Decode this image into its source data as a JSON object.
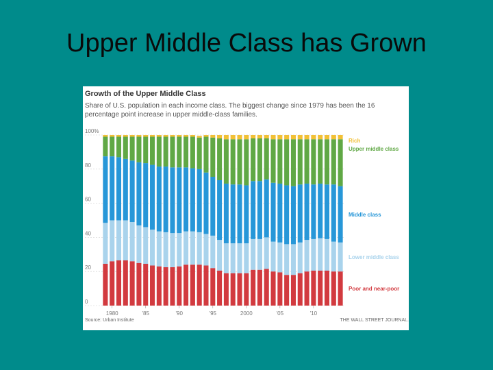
{
  "slide": {
    "title": "Upper Middle Class has Grown"
  },
  "chart_data": {
    "type": "bar",
    "stacked": true,
    "title": "Growth of the Upper Middle Class",
    "subtitle": "Share of U.S. population in each income class. The biggest change since 1979 has been the 16 percentage point increase in upper middle-class families.",
    "ylim": [
      0,
      100
    ],
    "y_ticks": [
      "100%",
      "80",
      "60",
      "40",
      "20",
      "0"
    ],
    "x_tick_labels": [
      "1980",
      "'85",
      "'90",
      "'95",
      "2000",
      "'05",
      "'10"
    ],
    "x_tick_years": [
      1980,
      1985,
      1990,
      1995,
      2000,
      2005,
      2010
    ],
    "years": [
      1979,
      1980,
      1981,
      1982,
      1983,
      1984,
      1985,
      1986,
      1987,
      1988,
      1989,
      1990,
      1991,
      1992,
      1993,
      1994,
      1995,
      1996,
      1997,
      1998,
      1999,
      2000,
      2001,
      2002,
      2003,
      2004,
      2005,
      2006,
      2007,
      2008,
      2009,
      2010,
      2011,
      2012,
      2013,
      2014
    ],
    "series": [
      {
        "name": "Poor and near-poor",
        "color": "#d23a3f",
        "values": [
          24.5,
          26,
          26.5,
          26.5,
          26,
          25,
          24.5,
          23.5,
          23,
          22.5,
          22.5,
          23,
          24,
          24,
          24,
          23.5,
          22,
          20.5,
          19,
          19,
          19,
          19,
          21,
          21,
          21.5,
          20,
          19.5,
          18,
          18,
          19,
          20,
          20.5,
          20.5,
          20.5,
          20,
          20
        ]
      },
      {
        "name": "Lower middle class",
        "color": "#a9d3ec",
        "values": [
          24,
          24,
          23.5,
          23.5,
          23,
          22,
          21.5,
          21,
          20.5,
          20.5,
          20,
          19.5,
          19.5,
          19.5,
          19,
          18.5,
          19,
          18,
          17.5,
          17.5,
          17.5,
          17.5,
          18,
          18,
          18.5,
          17.5,
          17.5,
          18,
          18,
          18,
          18.5,
          18.5,
          19,
          18.5,
          17.5,
          17
        ]
      },
      {
        "name": "Middle class",
        "color": "#2797d8",
        "values": [
          39,
          37.5,
          37,
          36,
          36,
          37,
          37.5,
          38,
          38,
          38.5,
          38.5,
          38.5,
          37.5,
          37,
          37,
          36,
          34.5,
          35,
          35,
          34.5,
          34.5,
          34,
          34,
          34,
          34,
          34.5,
          34.5,
          34.5,
          34,
          34,
          33,
          32,
          32,
          32,
          33.5,
          33
        ]
      },
      {
        "name": "Upper middle class",
        "color": "#60a845",
        "values": [
          11.5,
          11.5,
          12,
          13,
          14,
          15,
          15.5,
          16.5,
          17.5,
          17.5,
          18,
          18,
          18,
          18.5,
          18.5,
          21,
          23,
          24.5,
          26,
          26.5,
          26.5,
          27,
          25,
          25,
          24,
          25.5,
          26,
          27,
          27.5,
          26.5,
          26,
          26.5,
          26,
          26.5,
          26.5,
          27.5
        ]
      },
      {
        "name": "Rich",
        "color": "#f2c035",
        "values": [
          1,
          1,
          1,
          1,
          1,
          1,
          1,
          1,
          1,
          1,
          1,
          1,
          1,
          1,
          1,
          1,
          1.5,
          2,
          2.5,
          2.5,
          2.5,
          2.5,
          2,
          2,
          2,
          2.5,
          2.5,
          2.5,
          2.5,
          2.5,
          2.5,
          2.5,
          2.5,
          2.5,
          2.5,
          2.5
        ]
      }
    ],
    "legend_position": "right",
    "grid": true,
    "source": "Source: Urban Institute",
    "credit": "THE WALL STREET JOURNAL."
  }
}
